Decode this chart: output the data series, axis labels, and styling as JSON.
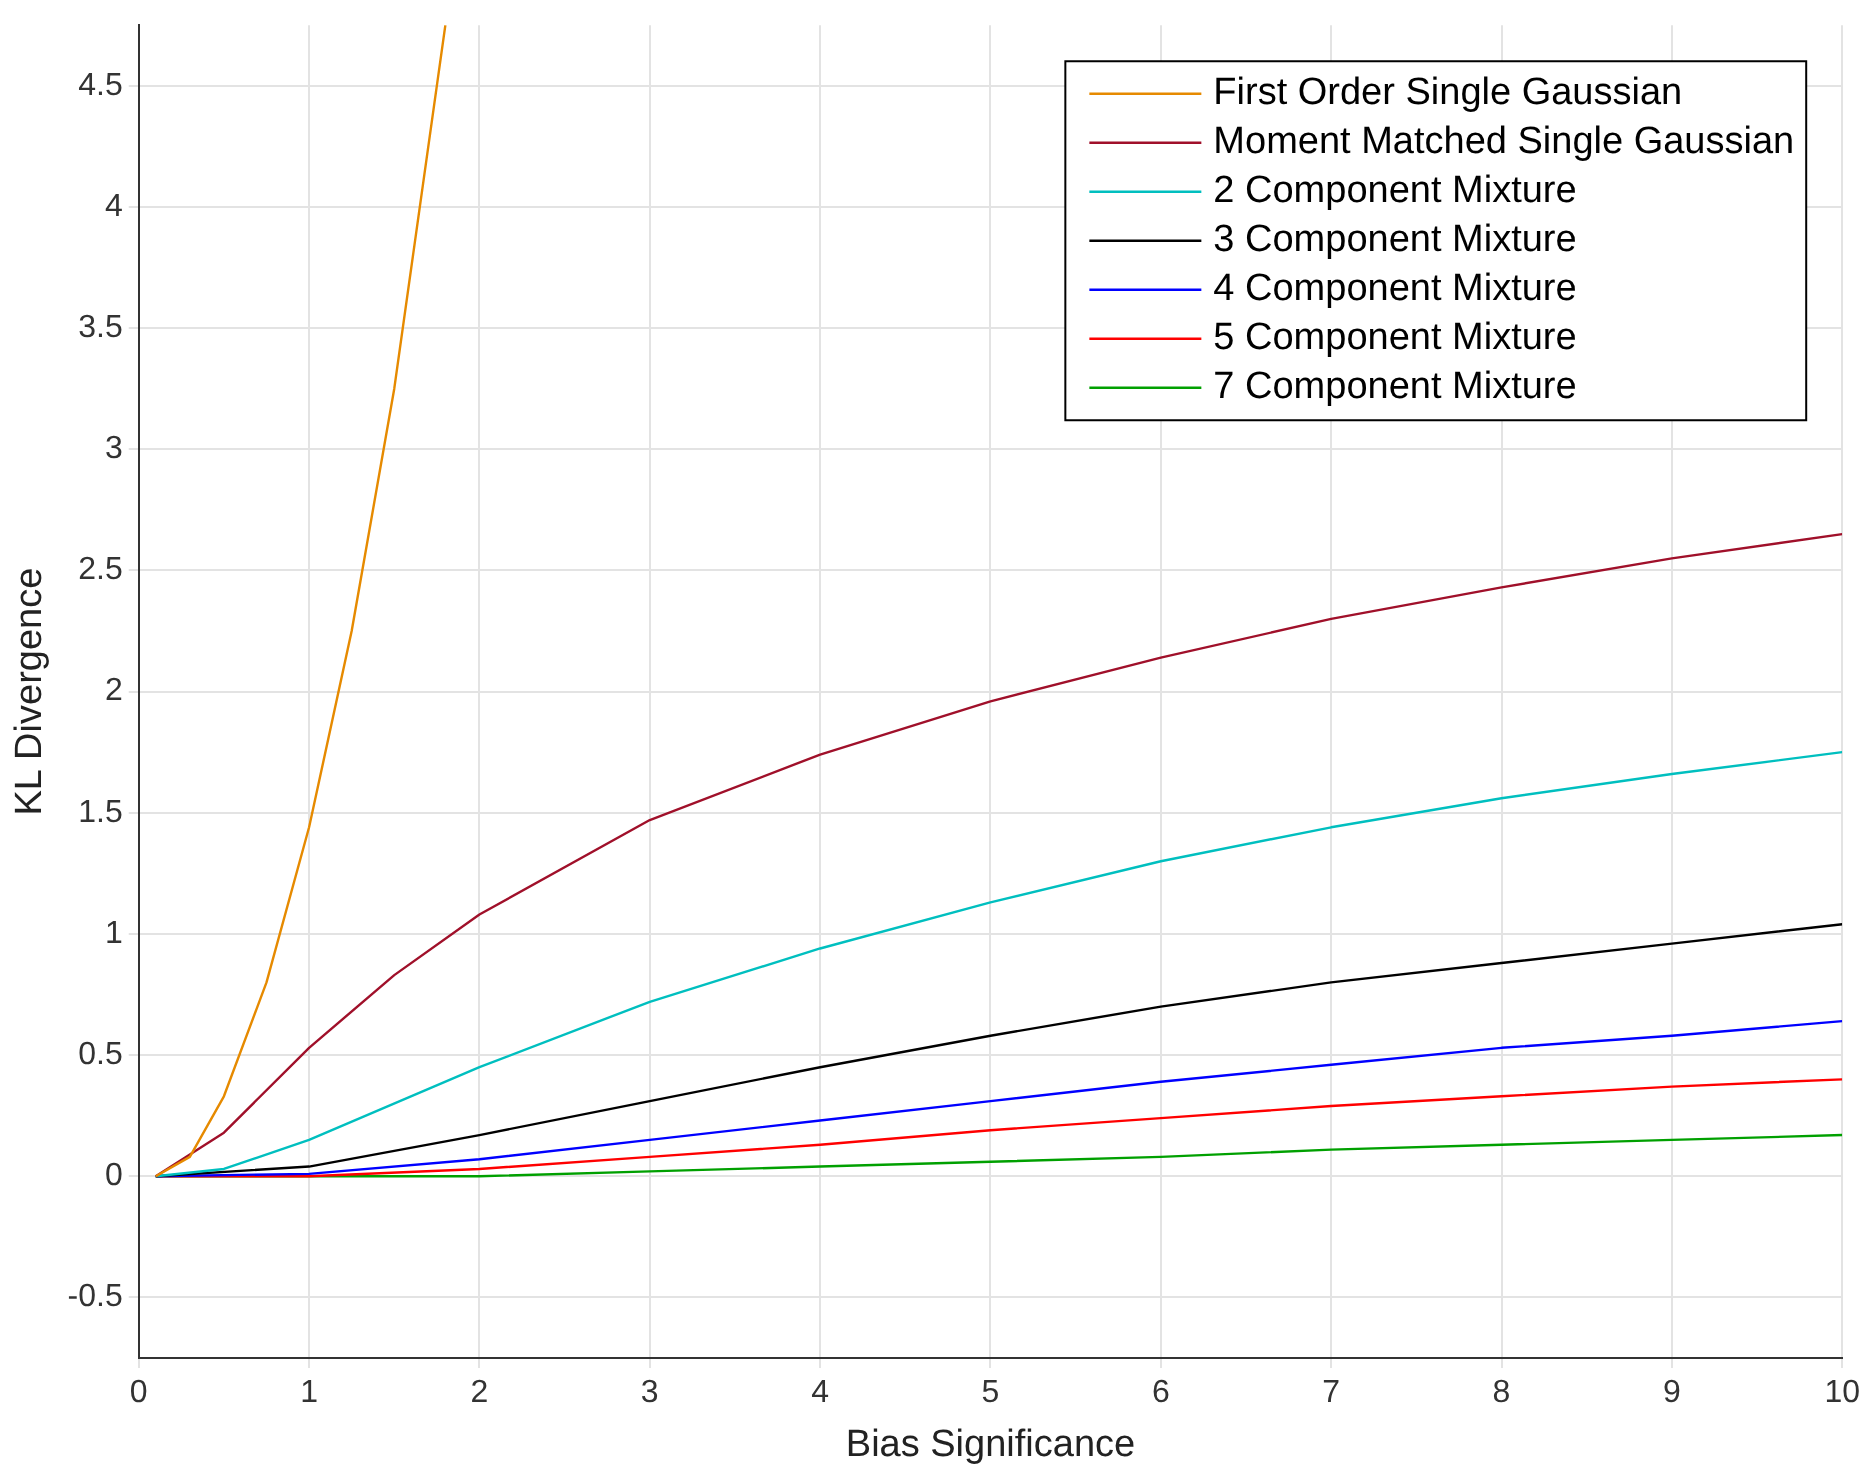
{
  "chart_data": {
    "type": "line",
    "xlabel": "Bias Significance",
    "ylabel": "KL Divergence",
    "xlim": [
      0,
      10
    ],
    "ylim": [
      -0.75,
      4.75
    ],
    "xticks": [
      0,
      1,
      2,
      3,
      4,
      5,
      6,
      7,
      8,
      9,
      10
    ],
    "yticks": [
      -0.5,
      0,
      0.5,
      1,
      1.5,
      2,
      2.5,
      3,
      3.5,
      4,
      4.5
    ],
    "grid": true,
    "legend": "top right",
    "marker": "none",
    "line_style": "solid",
    "series": [
      {
        "name": "First Order Single Gaussian",
        "color": "#e68a00",
        "x": [
          0.1,
          0.3,
          0.5,
          0.75,
          1,
          1.25,
          1.5,
          1.8
        ],
        "values": [
          0,
          0.08,
          0.33,
          0.8,
          1.44,
          2.25,
          3.25,
          4.75
        ]
      },
      {
        "name": "Moment Matched Single Gaussian",
        "color": "#a0102a",
        "x": [
          0.1,
          0.5,
          1,
          1.5,
          2,
          3,
          4,
          5,
          6,
          7,
          8,
          9,
          10
        ],
        "values": [
          0,
          0.18,
          0.53,
          0.83,
          1.08,
          1.47,
          1.74,
          1.96,
          2.14,
          2.3,
          2.43,
          2.55,
          2.65
        ]
      },
      {
        "name": "2 Component Mixture",
        "color": "#00bfbf",
        "x": [
          0.1,
          0.5,
          1,
          2,
          3,
          4,
          5,
          6,
          7,
          8,
          9,
          10
        ],
        "values": [
          0,
          0.03,
          0.15,
          0.45,
          0.72,
          0.94,
          1.13,
          1.3,
          1.44,
          1.56,
          1.66,
          1.75
        ]
      },
      {
        "name": "3 Component Mixture",
        "color": "#000000",
        "x": [
          0.1,
          1,
          2,
          3,
          4,
          5,
          6,
          7,
          8,
          9,
          10
        ],
        "values": [
          0,
          0.04,
          0.17,
          0.31,
          0.45,
          0.58,
          0.7,
          0.8,
          0.88,
          0.96,
          1.04
        ]
      },
      {
        "name": "4 Component Mixture",
        "color": "#0000ff",
        "x": [
          0.1,
          1,
          2,
          3,
          4,
          5,
          6,
          7,
          8,
          9,
          10
        ],
        "values": [
          0,
          0.01,
          0.07,
          0.15,
          0.23,
          0.31,
          0.39,
          0.46,
          0.53,
          0.58,
          0.64
        ]
      },
      {
        "name": "5 Component Mixture",
        "color": "#ff0000",
        "x": [
          0.1,
          1,
          2,
          3,
          4,
          5,
          6,
          7,
          8,
          9,
          10
        ],
        "values": [
          0,
          0,
          0.03,
          0.08,
          0.13,
          0.19,
          0.24,
          0.29,
          0.33,
          0.37,
          0.4
        ]
      },
      {
        "name": "7 Component Mixture",
        "color": "#00a000",
        "x": [
          0.1,
          1,
          2,
          3,
          4,
          5,
          6,
          7,
          8,
          9,
          10
        ],
        "values": [
          0,
          0,
          0,
          0.02,
          0.04,
          0.06,
          0.08,
          0.11,
          0.13,
          0.15,
          0.17
        ]
      }
    ]
  }
}
